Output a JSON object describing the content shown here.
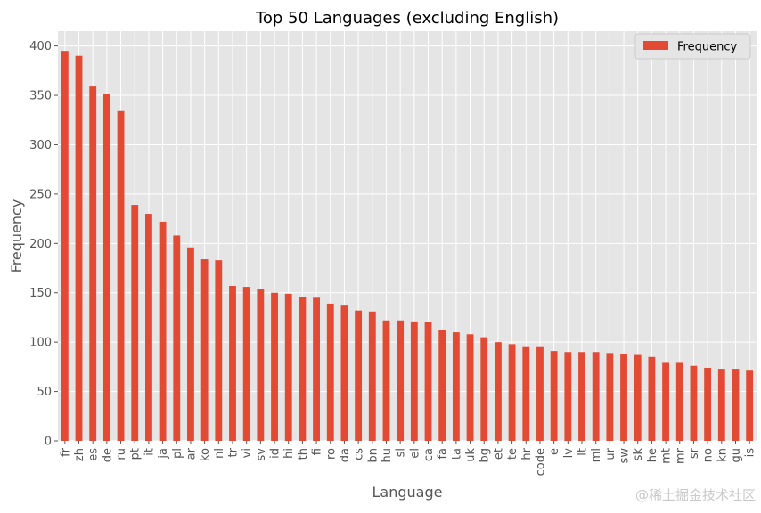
{
  "chart_data": {
    "type": "bar",
    "title": "Top 50 Languages (excluding English)",
    "xlabel": "Language",
    "ylabel": "Frequency",
    "ylim": [
      0,
      415
    ],
    "yticks": [
      0,
      50,
      100,
      150,
      200,
      250,
      300,
      350,
      400
    ],
    "grid": true,
    "legend_position": "top-right",
    "categories": [
      "fr",
      "zh",
      "es",
      "de",
      "ru",
      "pt",
      "it",
      "ja",
      "pl",
      "ar",
      "ko",
      "nl",
      "tr",
      "vi",
      "sv",
      "id",
      "hi",
      "th",
      "fi",
      "ro",
      "da",
      "cs",
      "bn",
      "hu",
      "sl",
      "el",
      "ca",
      "fa",
      "ta",
      "uk",
      "bg",
      "et",
      "te",
      "hr",
      "code",
      "e",
      "lv",
      "lt",
      "ml",
      "ur",
      "sw",
      "sk",
      "he",
      "mt",
      "mr",
      "sr",
      "no",
      "kn",
      "gu",
      "is"
    ],
    "series": [
      {
        "name": "Frequency",
        "color": "#E24A33",
        "values": [
          395,
          390,
          359,
          351,
          334,
          239,
          230,
          222,
          208,
          196,
          184,
          183,
          157,
          156,
          154,
          150,
          149,
          146,
          145,
          139,
          137,
          132,
          131,
          122,
          122,
          121,
          120,
          112,
          110,
          108,
          105,
          100,
          98,
          95,
          95,
          91,
          90,
          90,
          90,
          89,
          88,
          87,
          85,
          79,
          79,
          76,
          74,
          73,
          73,
          72
        ]
      }
    ]
  },
  "watermark": "@稀土掘金技术社区"
}
